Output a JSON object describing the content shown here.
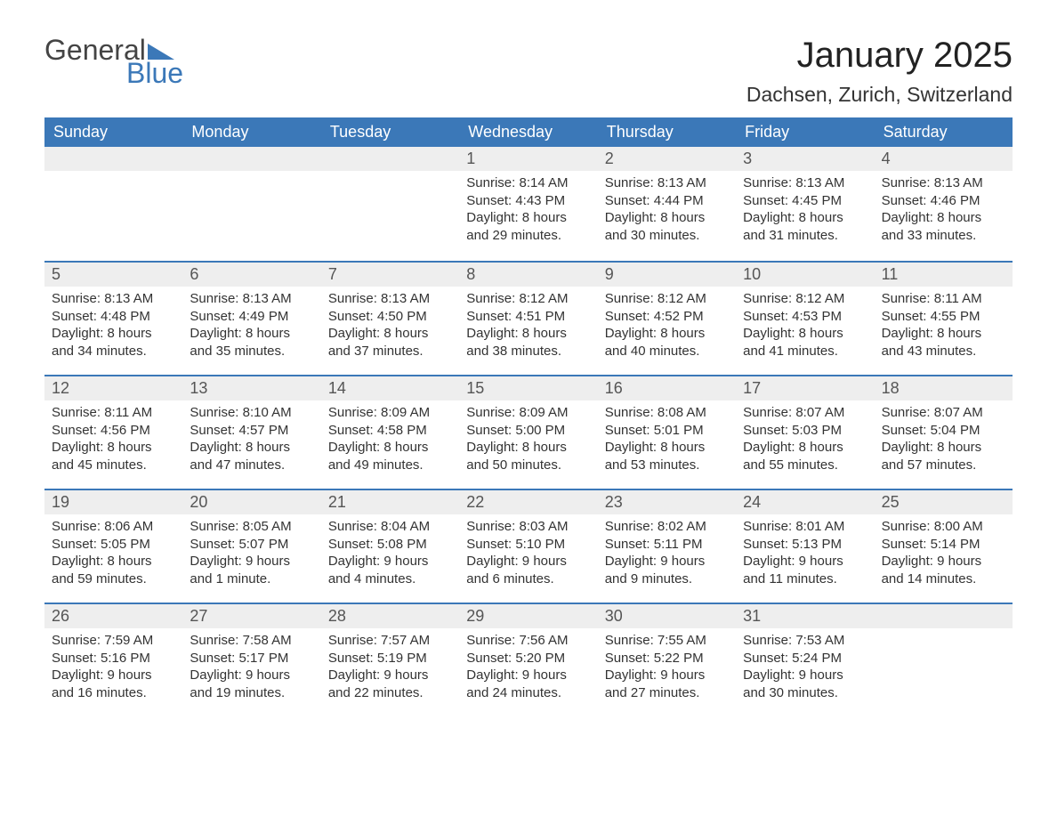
{
  "logo": {
    "text1": "General",
    "text2": "Blue"
  },
  "title": "January 2025",
  "location": "Dachsen, Zurich, Switzerland",
  "colors": {
    "header_bg": "#3b78b8",
    "header_text": "#ffffff",
    "daynum_bg": "#eeeeee",
    "row_border": "#3b78b8",
    "body_text": "#333333",
    "page_bg": "#ffffff"
  },
  "dow": [
    "Sunday",
    "Monday",
    "Tuesday",
    "Wednesday",
    "Thursday",
    "Friday",
    "Saturday"
  ],
  "weeks": [
    [
      {
        "n": "",
        "sr": "",
        "ss": "",
        "dl": ""
      },
      {
        "n": "",
        "sr": "",
        "ss": "",
        "dl": ""
      },
      {
        "n": "",
        "sr": "",
        "ss": "",
        "dl": ""
      },
      {
        "n": "1",
        "sr": "Sunrise: 8:14 AM",
        "ss": "Sunset: 4:43 PM",
        "dl": "Daylight: 8 hours and 29 minutes."
      },
      {
        "n": "2",
        "sr": "Sunrise: 8:13 AM",
        "ss": "Sunset: 4:44 PM",
        "dl": "Daylight: 8 hours and 30 minutes."
      },
      {
        "n": "3",
        "sr": "Sunrise: 8:13 AM",
        "ss": "Sunset: 4:45 PM",
        "dl": "Daylight: 8 hours and 31 minutes."
      },
      {
        "n": "4",
        "sr": "Sunrise: 8:13 AM",
        "ss": "Sunset: 4:46 PM",
        "dl": "Daylight: 8 hours and 33 minutes."
      }
    ],
    [
      {
        "n": "5",
        "sr": "Sunrise: 8:13 AM",
        "ss": "Sunset: 4:48 PM",
        "dl": "Daylight: 8 hours and 34 minutes."
      },
      {
        "n": "6",
        "sr": "Sunrise: 8:13 AM",
        "ss": "Sunset: 4:49 PM",
        "dl": "Daylight: 8 hours and 35 minutes."
      },
      {
        "n": "7",
        "sr": "Sunrise: 8:13 AM",
        "ss": "Sunset: 4:50 PM",
        "dl": "Daylight: 8 hours and 37 minutes."
      },
      {
        "n": "8",
        "sr": "Sunrise: 8:12 AM",
        "ss": "Sunset: 4:51 PM",
        "dl": "Daylight: 8 hours and 38 minutes."
      },
      {
        "n": "9",
        "sr": "Sunrise: 8:12 AM",
        "ss": "Sunset: 4:52 PM",
        "dl": "Daylight: 8 hours and 40 minutes."
      },
      {
        "n": "10",
        "sr": "Sunrise: 8:12 AM",
        "ss": "Sunset: 4:53 PM",
        "dl": "Daylight: 8 hours and 41 minutes."
      },
      {
        "n": "11",
        "sr": "Sunrise: 8:11 AM",
        "ss": "Sunset: 4:55 PM",
        "dl": "Daylight: 8 hours and 43 minutes."
      }
    ],
    [
      {
        "n": "12",
        "sr": "Sunrise: 8:11 AM",
        "ss": "Sunset: 4:56 PM",
        "dl": "Daylight: 8 hours and 45 minutes."
      },
      {
        "n": "13",
        "sr": "Sunrise: 8:10 AM",
        "ss": "Sunset: 4:57 PM",
        "dl": "Daylight: 8 hours and 47 minutes."
      },
      {
        "n": "14",
        "sr": "Sunrise: 8:09 AM",
        "ss": "Sunset: 4:58 PM",
        "dl": "Daylight: 8 hours and 49 minutes."
      },
      {
        "n": "15",
        "sr": "Sunrise: 8:09 AM",
        "ss": "Sunset: 5:00 PM",
        "dl": "Daylight: 8 hours and 50 minutes."
      },
      {
        "n": "16",
        "sr": "Sunrise: 8:08 AM",
        "ss": "Sunset: 5:01 PM",
        "dl": "Daylight: 8 hours and 53 minutes."
      },
      {
        "n": "17",
        "sr": "Sunrise: 8:07 AM",
        "ss": "Sunset: 5:03 PM",
        "dl": "Daylight: 8 hours and 55 minutes."
      },
      {
        "n": "18",
        "sr": "Sunrise: 8:07 AM",
        "ss": "Sunset: 5:04 PM",
        "dl": "Daylight: 8 hours and 57 minutes."
      }
    ],
    [
      {
        "n": "19",
        "sr": "Sunrise: 8:06 AM",
        "ss": "Sunset: 5:05 PM",
        "dl": "Daylight: 8 hours and 59 minutes."
      },
      {
        "n": "20",
        "sr": "Sunrise: 8:05 AM",
        "ss": "Sunset: 5:07 PM",
        "dl": "Daylight: 9 hours and 1 minute."
      },
      {
        "n": "21",
        "sr": "Sunrise: 8:04 AM",
        "ss": "Sunset: 5:08 PM",
        "dl": "Daylight: 9 hours and 4 minutes."
      },
      {
        "n": "22",
        "sr": "Sunrise: 8:03 AM",
        "ss": "Sunset: 5:10 PM",
        "dl": "Daylight: 9 hours and 6 minutes."
      },
      {
        "n": "23",
        "sr": "Sunrise: 8:02 AM",
        "ss": "Sunset: 5:11 PM",
        "dl": "Daylight: 9 hours and 9 minutes."
      },
      {
        "n": "24",
        "sr": "Sunrise: 8:01 AM",
        "ss": "Sunset: 5:13 PM",
        "dl": "Daylight: 9 hours and 11 minutes."
      },
      {
        "n": "25",
        "sr": "Sunrise: 8:00 AM",
        "ss": "Sunset: 5:14 PM",
        "dl": "Daylight: 9 hours and 14 minutes."
      }
    ],
    [
      {
        "n": "26",
        "sr": "Sunrise: 7:59 AM",
        "ss": "Sunset: 5:16 PM",
        "dl": "Daylight: 9 hours and 16 minutes."
      },
      {
        "n": "27",
        "sr": "Sunrise: 7:58 AM",
        "ss": "Sunset: 5:17 PM",
        "dl": "Daylight: 9 hours and 19 minutes."
      },
      {
        "n": "28",
        "sr": "Sunrise: 7:57 AM",
        "ss": "Sunset: 5:19 PM",
        "dl": "Daylight: 9 hours and 22 minutes."
      },
      {
        "n": "29",
        "sr": "Sunrise: 7:56 AM",
        "ss": "Sunset: 5:20 PM",
        "dl": "Daylight: 9 hours and 24 minutes."
      },
      {
        "n": "30",
        "sr": "Sunrise: 7:55 AM",
        "ss": "Sunset: 5:22 PM",
        "dl": "Daylight: 9 hours and 27 minutes."
      },
      {
        "n": "31",
        "sr": "Sunrise: 7:53 AM",
        "ss": "Sunset: 5:24 PM",
        "dl": "Daylight: 9 hours and 30 minutes."
      },
      {
        "n": "",
        "sr": "",
        "ss": "",
        "dl": ""
      }
    ]
  ]
}
